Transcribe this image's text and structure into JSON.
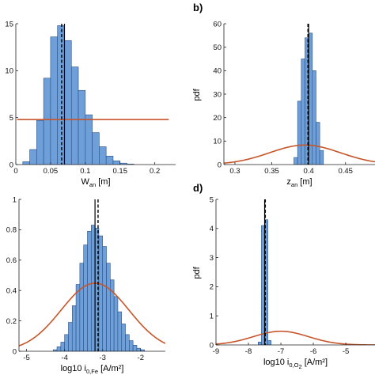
{
  "colors": {
    "bar_fill": "#6f9fd8",
    "bar_edge": "#2a4f86",
    "fit_curve": "#c8552a",
    "mean_line": "#000000",
    "median_line": "#000000",
    "axis": "#222222"
  },
  "chart_data": [
    {
      "id": "a",
      "type": "bar",
      "panel_label": "",
      "xlabel": {
        "main": "W",
        "sub": "an",
        "unit": "[m]"
      },
      "ylabel": "",
      "xlim": [
        0,
        0.23
      ],
      "ylim": [
        0,
        15
      ],
      "xticks": [
        0,
        0.05,
        0.1,
        0.15,
        0.2
      ],
      "xtick_labels": [
        "0",
        "0.05",
        "0.1",
        "0.15",
        "0.2"
      ],
      "yticks": [
        0,
        5,
        10,
        15
      ],
      "ytick_labels": [
        "0",
        "5",
        "10",
        "15"
      ],
      "bin_width": 0.01,
      "bins": [
        [
          0.01,
          0.3
        ],
        [
          0.02,
          1.6
        ],
        [
          0.03,
          4.7
        ],
        [
          0.04,
          9.2
        ],
        [
          0.05,
          13.6
        ],
        [
          0.06,
          14.8
        ],
        [
          0.07,
          13.2
        ],
        [
          0.08,
          10.4
        ],
        [
          0.09,
          7.9
        ],
        [
          0.1,
          5.3
        ],
        [
          0.11,
          3.4
        ],
        [
          0.12,
          1.9
        ],
        [
          0.13,
          0.9
        ],
        [
          0.14,
          0.4
        ],
        [
          0.15,
          0.15
        ],
        [
          0.16,
          0.05
        ]
      ],
      "fit_curve": {
        "kind": "uniform",
        "level": 4.8
      },
      "mean": 0.07,
      "median": 0.066
    },
    {
      "id": "b",
      "type": "bar",
      "panel_label": "b)",
      "xlabel": {
        "main": "z",
        "sub": "an",
        "unit": "[m]"
      },
      "ylabel": "pdf",
      "xlim": [
        0.285,
        0.49
      ],
      "ylim": [
        0,
        60
      ],
      "xticks": [
        0.3,
        0.35,
        0.4,
        0.45
      ],
      "xtick_labels": [
        "0.3",
        "0.35",
        "0.4",
        "0.45"
      ],
      "yticks": [
        0,
        10,
        20,
        30,
        40,
        50,
        60
      ],
      "ytick_labels": [
        "0",
        "10",
        "20",
        "30",
        "40",
        "50",
        "60"
      ],
      "bin_width": 0.005,
      "bins": [
        [
          0.38,
          3
        ],
        [
          0.385,
          27
        ],
        [
          0.39,
          45
        ],
        [
          0.395,
          54
        ],
        [
          0.4,
          56
        ],
        [
          0.405,
          40
        ],
        [
          0.41,
          18
        ],
        [
          0.415,
          6
        ]
      ],
      "fit_curve": {
        "kind": "normal",
        "mean": 0.395,
        "sd": 0.048
      },
      "mean": 0.4,
      "median": 0.399
    },
    {
      "id": "c",
      "type": "bar",
      "panel_label": "",
      "xlabel": {
        "main": "log10 i",
        "sub": "0,Fe",
        "unit": "[A/m²]"
      },
      "ylabel": "",
      "xlim": [
        -5.2,
        -1.35
      ],
      "ylim": [
        0,
        1
      ],
      "xticks": [
        -5,
        -4,
        -3,
        -2
      ],
      "xtick_labels": [
        "-5",
        "-4",
        "-3",
        "-2"
      ],
      "yticks": [
        0,
        0.2,
        0.4,
        0.6,
        0.8,
        1
      ],
      "ytick_labels": [
        "0",
        "0.2",
        "0.4",
        "0.6",
        "0.8",
        "1"
      ],
      "bin_width": 0.1,
      "bins": [
        [
          -4.3,
          0.01
        ],
        [
          -4.2,
          0.03
        ],
        [
          -4.1,
          0.06
        ],
        [
          -4.0,
          0.11
        ],
        [
          -3.9,
          0.19
        ],
        [
          -3.8,
          0.3
        ],
        [
          -3.7,
          0.44
        ],
        [
          -3.6,
          0.58
        ],
        [
          -3.5,
          0.7
        ],
        [
          -3.4,
          0.79
        ],
        [
          -3.3,
          0.83
        ],
        [
          -3.2,
          0.81
        ],
        [
          -3.1,
          0.76
        ],
        [
          -3.0,
          0.69
        ],
        [
          -2.9,
          0.58
        ],
        [
          -2.8,
          0.47
        ],
        [
          -2.7,
          0.36
        ],
        [
          -2.6,
          0.26
        ],
        [
          -2.5,
          0.18
        ],
        [
          -2.4,
          0.11
        ],
        [
          -2.3,
          0.07
        ],
        [
          -2.2,
          0.04
        ],
        [
          -2.1,
          0.02
        ],
        [
          -2.0,
          0.01
        ]
      ],
      "fit_curve": {
        "kind": "normal",
        "mean": -3.2,
        "sd": 0.89
      },
      "mean": -3.2,
      "median": -3.12
    },
    {
      "id": "d",
      "type": "bar",
      "panel_label": "d)",
      "xlabel": {
        "main": "log10 i",
        "sub": "0,O",
        "sub2": "2",
        "unit": "[A/m²]"
      },
      "ylabel": "pdf",
      "xlim": [
        -9,
        -4.1
      ],
      "ylim": [
        0,
        5
      ],
      "xticks": [
        -9,
        -8,
        -7,
        -6,
        -5
      ],
      "xtick_labels": [
        "-9",
        "-8",
        "-7",
        "-6",
        "-5"
      ],
      "yticks": [
        0,
        1,
        2,
        3,
        4,
        5
      ],
      "ytick_labels": [
        "0",
        "1",
        "2",
        "3",
        "4",
        "5"
      ],
      "bin_width": 0.1,
      "bins": [
        [
          -7.7,
          0.1
        ],
        [
          -7.6,
          4.1
        ],
        [
          -7.5,
          4.3
        ],
        [
          -7.4,
          0.15
        ]
      ],
      "fit_curve": {
        "kind": "normal",
        "mean": -7.0,
        "sd": 0.85
      },
      "mean": -7.5,
      "median": -7.48
    }
  ]
}
